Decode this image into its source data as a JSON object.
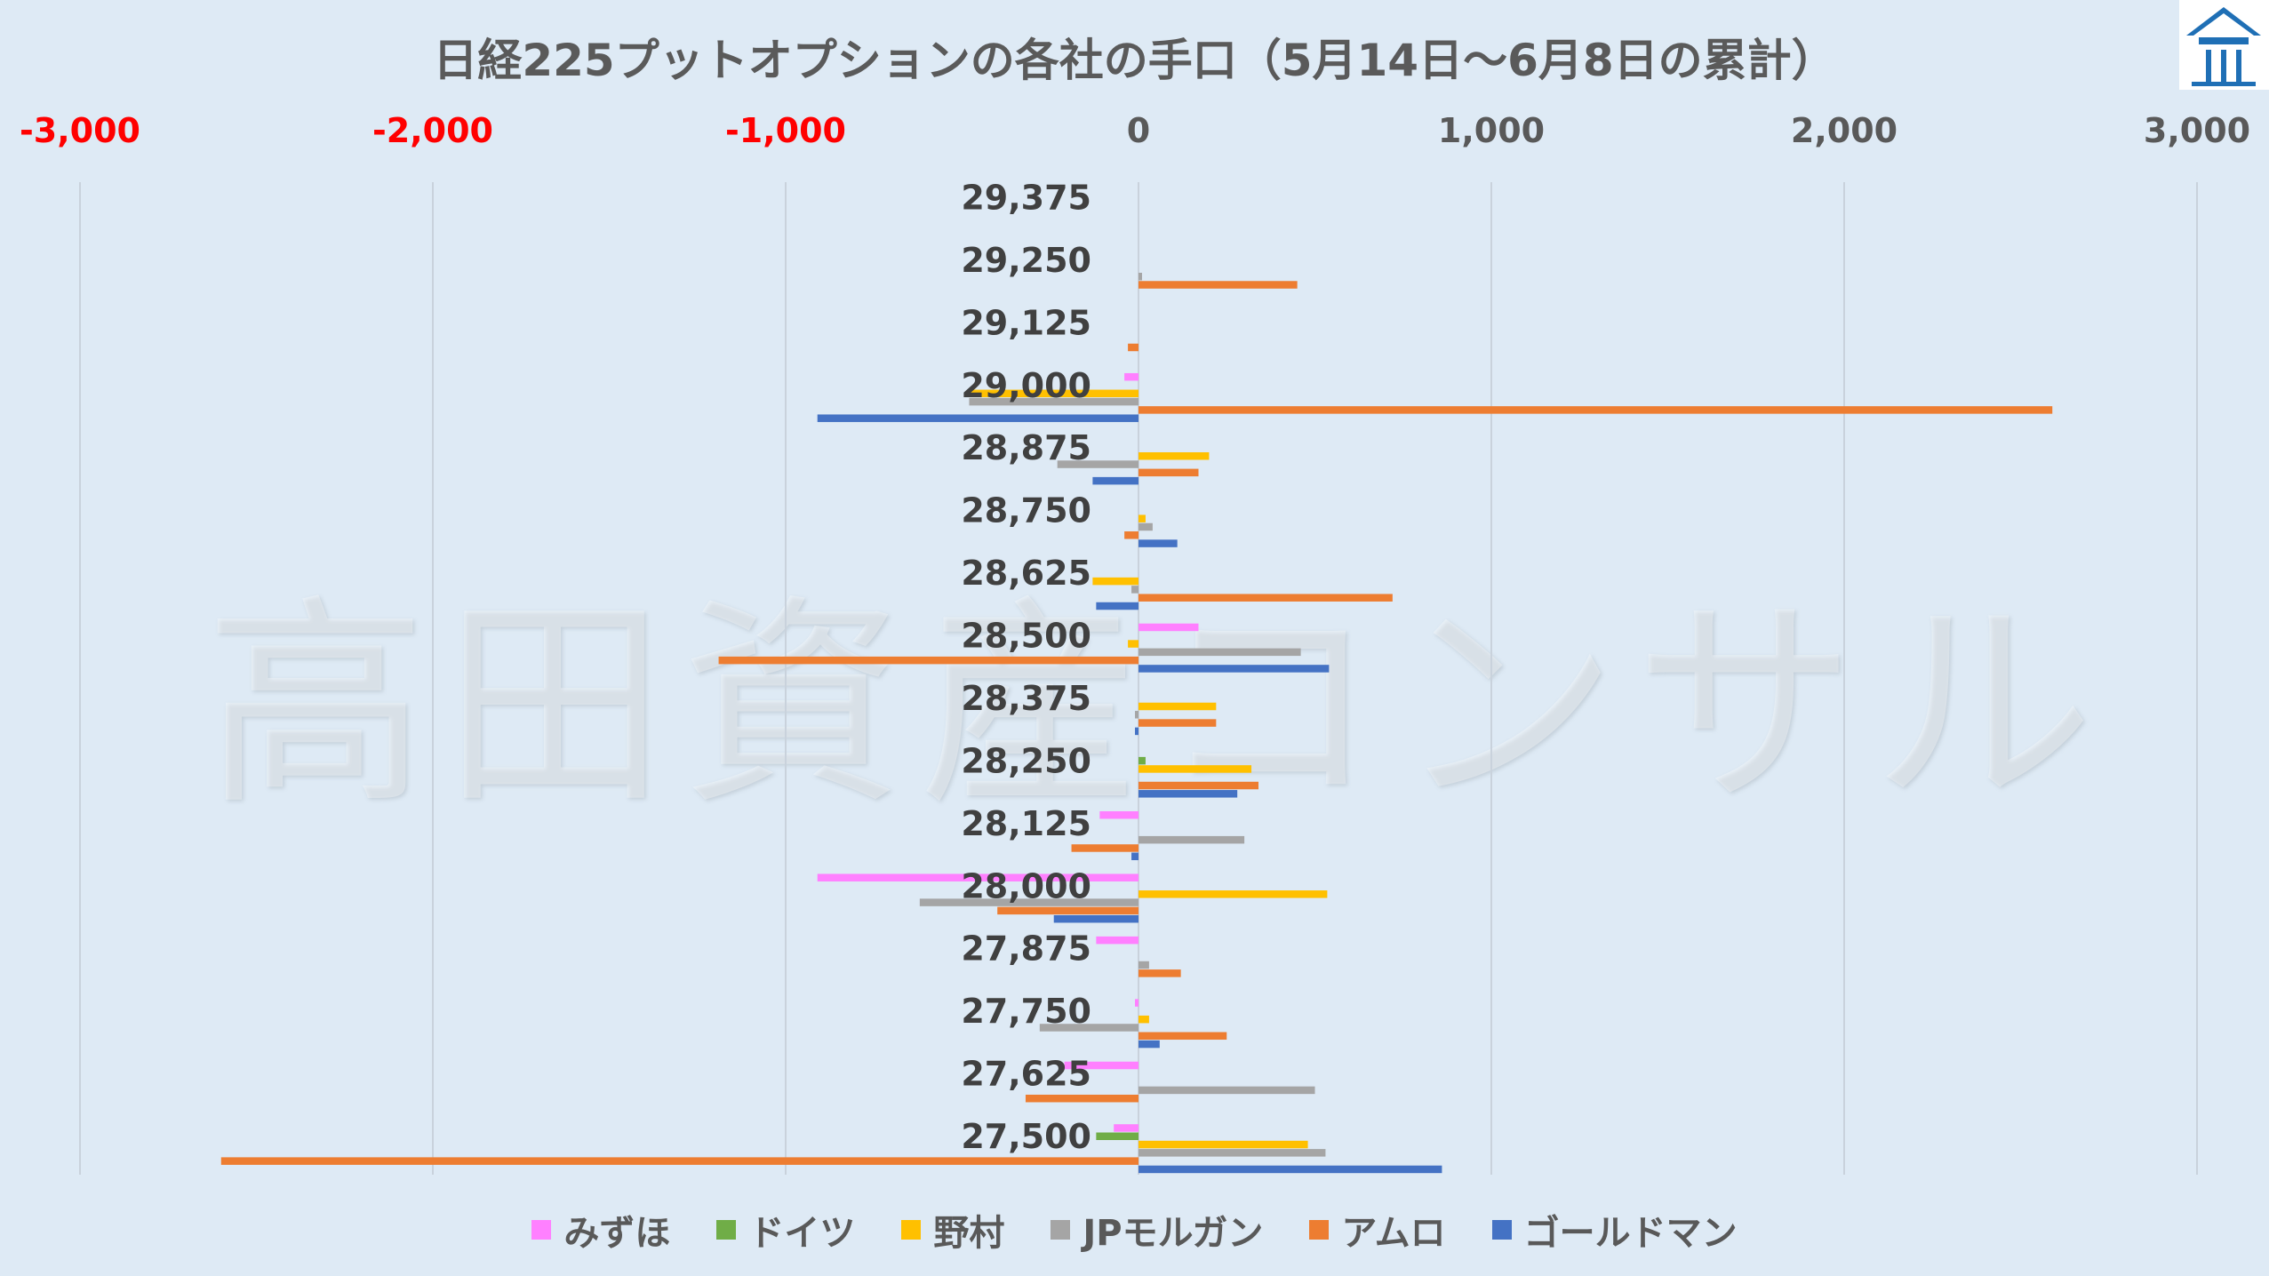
{
  "chart_data": {
    "type": "bar",
    "orientation": "horizontal",
    "title": "日経225プットオプションの各社の手口（5月14日～6月8日の累計）",
    "xlim": [
      -3000,
      3000
    ],
    "xticks": [
      {
        "value": -3000,
        "label": "-3,000"
      },
      {
        "value": -2000,
        "label": "-2,000"
      },
      {
        "value": -1000,
        "label": "-1,000"
      },
      {
        "value": 0,
        "label": "0"
      },
      {
        "value": 1000,
        "label": "1,000"
      },
      {
        "value": 2000,
        "label": "2,000"
      },
      {
        "value": 3000,
        "label": "3,000"
      }
    ],
    "negative_tick_color": "#ff0000",
    "positive_tick_color": "#595959",
    "grid": "vertical",
    "legend_position": "bottom",
    "categories": [
      "29,375",
      "29,250",
      "29,125",
      "29,000",
      "28,875",
      "28,750",
      "28,625",
      "28,500",
      "28,375",
      "28,250",
      "28,125",
      "28,000",
      "27,875",
      "27,750",
      "27,625",
      "27,500"
    ],
    "series": [
      {
        "name": "みずほ",
        "color": "#ff80ff",
        "values": [
          0,
          0,
          0,
          -40,
          0,
          0,
          0,
          170,
          0,
          0,
          -110,
          -910,
          -120,
          -10,
          -210,
          -70
        ]
      },
      {
        "name": "ドイツ",
        "color": "#70ad47",
        "values": [
          0,
          0,
          0,
          0,
          0,
          0,
          0,
          0,
          0,
          20,
          0,
          0,
          0,
          0,
          0,
          -120
        ]
      },
      {
        "name": "野村",
        "color": "#ffc000",
        "values": [
          0,
          0,
          0,
          -480,
          200,
          20,
          -130,
          -30,
          220,
          320,
          0,
          535,
          0,
          30,
          0,
          480
        ]
      },
      {
        "name": "JPモルガン",
        "color": "#a5a5a5",
        "values": [
          0,
          10,
          0,
          -480,
          -230,
          40,
          -20,
          460,
          -10,
          0,
          300,
          -620,
          30,
          -280,
          500,
          530
        ]
      },
      {
        "name": "アムロ",
        "color": "#ed7d31",
        "values": [
          0,
          450,
          -30,
          2590,
          170,
          -40,
          720,
          -1190,
          220,
          340,
          -190,
          -400,
          120,
          250,
          -320,
          -2600
        ]
      },
      {
        "name": "ゴールドマン",
        "color": "#4472c4",
        "values": [
          0,
          0,
          0,
          -910,
          -130,
          110,
          -120,
          540,
          -10,
          280,
          -20,
          -240,
          0,
          60,
          0,
          860
        ]
      }
    ]
  },
  "watermark": "高田資産コンサル",
  "logo": {
    "name": "house-logo",
    "color": "#1f6fb5"
  }
}
